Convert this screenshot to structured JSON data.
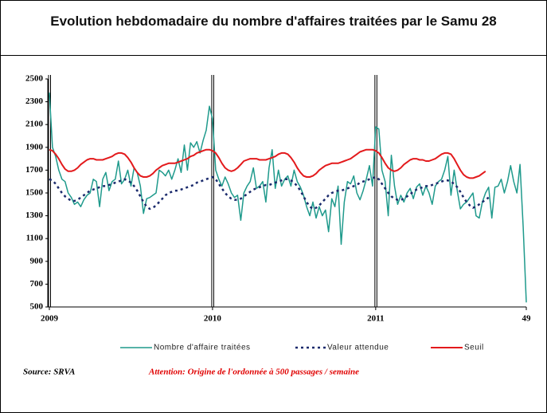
{
  "chart_data": {
    "type": "line",
    "title": "Evolution hebdomadaire du nombre d'affaires traitées par le Samu 28",
    "source": "Source: SRVA",
    "note": "Attention: Origine de l'ordonnée à 500 passages / semaine",
    "xlim": [
      0,
      152
    ],
    "xticks": [
      {
        "value": 0,
        "label": "2009"
      },
      {
        "value": 52,
        "label": "2010"
      },
      {
        "value": 104,
        "label": "2011"
      },
      {
        "value": 152,
        "label": "49"
      }
    ],
    "ylim": [
      500,
      2500
    ],
    "yticks": [
      500,
      700,
      900,
      1100,
      1300,
      1500,
      1700,
      1900,
      2100,
      2300,
      2500
    ],
    "x": [
      0,
      1,
      2,
      3,
      4,
      5,
      6,
      7,
      8,
      9,
      10,
      11,
      12,
      13,
      14,
      15,
      16,
      17,
      18,
      19,
      20,
      21,
      22,
      23,
      24,
      25,
      26,
      27,
      28,
      29,
      30,
      31,
      32,
      33,
      34,
      35,
      36,
      37,
      38,
      39,
      40,
      41,
      42,
      43,
      44,
      45,
      46,
      47,
      48,
      49,
      50,
      51,
      52,
      53,
      54,
      55,
      56,
      57,
      58,
      59,
      60,
      61,
      62,
      63,
      64,
      65,
      66,
      67,
      68,
      69,
      70,
      71,
      72,
      73,
      74,
      75,
      76,
      77,
      78,
      79,
      80,
      81,
      82,
      83,
      84,
      85,
      86,
      87,
      88,
      89,
      90,
      91,
      92,
      93,
      94,
      95,
      96,
      97,
      98,
      99,
      100,
      101,
      102,
      103,
      104,
      105,
      106,
      107,
      108,
      109,
      110,
      111,
      112,
      113,
      114,
      115,
      116,
      117,
      118,
      119,
      120,
      121,
      122,
      123,
      124,
      125,
      126,
      127,
      128,
      129,
      130,
      131,
      132,
      133,
      134,
      135,
      136,
      137,
      138,
      139,
      140,
      141,
      142,
      143,
      144,
      145,
      146,
      147,
      148,
      149,
      150,
      151,
      152
    ],
    "series": [
      {
        "name": "Nombre d'affaire traitées",
        "color": "#1f9a8c",
        "style": "solid",
        "width": 1.5,
        "values": [
          2380,
          1900,
          1820,
          1700,
          1620,
          1600,
          1500,
          1460,
          1400,
          1420,
          1380,
          1440,
          1480,
          1500,
          1620,
          1600,
          1380,
          1620,
          1680,
          1520,
          1600,
          1620,
          1780,
          1580,
          1620,
          1700,
          1560,
          1720,
          1680,
          1560,
          1320,
          1450,
          1460,
          1480,
          1500,
          1700,
          1680,
          1650,
          1700,
          1620,
          1700,
          1800,
          1680,
          1920,
          1700,
          1940,
          1900,
          1950,
          1850,
          1960,
          2050,
          2260,
          2150,
          1700,
          1620,
          1560,
          1640,
          1580,
          1500,
          1460,
          1480,
          1260,
          1500,
          1560,
          1600,
          1720,
          1540,
          1560,
          1600,
          1420,
          1720,
          1880,
          1540,
          1700,
          1560,
          1620,
          1650,
          1560,
          1700,
          1600,
          1550,
          1480,
          1380,
          1300,
          1420,
          1280,
          1380,
          1300,
          1350,
          1160,
          1450,
          1380,
          1560,
          1050,
          1420,
          1600,
          1580,
          1650,
          1500,
          1440,
          1520,
          1620,
          1740,
          1560,
          2080,
          2060,
          1700,
          1600,
          1300,
          1830,
          1560,
          1400,
          1480,
          1420,
          1500,
          1540,
          1450,
          1550,
          1580,
          1480,
          1560,
          1500,
          1400,
          1560,
          1600,
          1620,
          1700,
          1820,
          1480,
          1700,
          1520,
          1360,
          1400,
          1420,
          1460,
          1500,
          1300,
          1280,
          1420,
          1500,
          1550,
          1280,
          1550,
          1560,
          1620,
          1500,
          1600,
          1740,
          1600,
          1500,
          1750,
          1200,
          540
        ]
      },
      {
        "name": "Valeur attendue",
        "color": "#1a2a6c",
        "style": "dotted",
        "width": 2.5,
        "values": [
          1620,
          1610,
          1580,
          1540,
          1500,
          1470,
          1450,
          1430,
          1430,
          1440,
          1460,
          1480,
          1500,
          1520,
          1530,
          1540,
          1550,
          1560,
          1560,
          1570,
          1580,
          1590,
          1600,
          1610,
          1620,
          1610,
          1590,
          1560,
          1520,
          1470,
          1420,
          1380,
          1360,
          1370,
          1390,
          1420,
          1450,
          1480,
          1500,
          1510,
          1520,
          1520,
          1530,
          1540,
          1550,
          1560,
          1570,
          1590,
          1600,
          1610,
          1620,
          1630,
          1640,
          1620,
          1580,
          1540,
          1500,
          1470,
          1450,
          1440,
          1440,
          1450,
          1470,
          1490,
          1510,
          1530,
          1540,
          1550,
          1560,
          1570,
          1570,
          1580,
          1590,
          1600,
          1610,
          1620,
          1620,
          1610,
          1590,
          1560,
          1520,
          1470,
          1420,
          1380,
          1360,
          1370,
          1390,
          1420,
          1450,
          1480,
          1500,
          1510,
          1520,
          1520,
          1530,
          1540,
          1550,
          1560,
          1570,
          1590,
          1600,
          1610,
          1620,
          1630,
          1640,
          1620,
          1580,
          1540,
          1500,
          1470,
          1450,
          1440,
          1440,
          1450,
          1470,
          1490,
          1510,
          1530,
          1540,
          1550,
          1560,
          1560,
          1570,
          1580,
          1590,
          1600,
          1610,
          1610,
          1600,
          1580,
          1550,
          1510,
          1460,
          1420,
          1390,
          1370,
          1380,
          1400,
          1420,
          1440,
          1460,
          null,
          null,
          null,
          null,
          null,
          null,
          null,
          null,
          null,
          null,
          null,
          null
        ]
      },
      {
        "name": "Seuil",
        "color": "#e31a1c",
        "style": "solid",
        "width": 2,
        "values": [
          1880,
          1870,
          1840,
          1800,
          1750,
          1710,
          1690,
          1690,
          1700,
          1720,
          1750,
          1770,
          1790,
          1800,
          1800,
          1790,
          1790,
          1790,
          1800,
          1810,
          1820,
          1840,
          1850,
          1850,
          1840,
          1810,
          1770,
          1720,
          1680,
          1650,
          1640,
          1640,
          1650,
          1670,
          1700,
          1720,
          1740,
          1750,
          1760,
          1760,
          1760,
          1770,
          1780,
          1790,
          1800,
          1820,
          1830,
          1850,
          1860,
          1870,
          1880,
          1880,
          1870,
          1850,
          1810,
          1760,
          1720,
          1700,
          1690,
          1700,
          1720,
          1750,
          1780,
          1790,
          1800,
          1800,
          1800,
          1790,
          1790,
          1790,
          1800,
          1810,
          1820,
          1840,
          1850,
          1850,
          1840,
          1810,
          1770,
          1720,
          1680,
          1650,
          1640,
          1640,
          1650,
          1670,
          1700,
          1720,
          1740,
          1750,
          1760,
          1760,
          1760,
          1770,
          1780,
          1790,
          1800,
          1820,
          1840,
          1860,
          1870,
          1880,
          1880,
          1880,
          1870,
          1850,
          1810,
          1760,
          1720,
          1700,
          1690,
          1700,
          1720,
          1750,
          1770,
          1790,
          1800,
          1800,
          1790,
          1790,
          1780,
          1780,
          1790,
          1800,
          1820,
          1840,
          1850,
          1850,
          1840,
          1800,
          1750,
          1700,
          1660,
          1640,
          1630,
          1630,
          1640,
          1650,
          1670,
          1690,
          null,
          null,
          null,
          null,
          null,
          null,
          null,
          null,
          null,
          null,
          null,
          null,
          null
        ]
      }
    ]
  }
}
